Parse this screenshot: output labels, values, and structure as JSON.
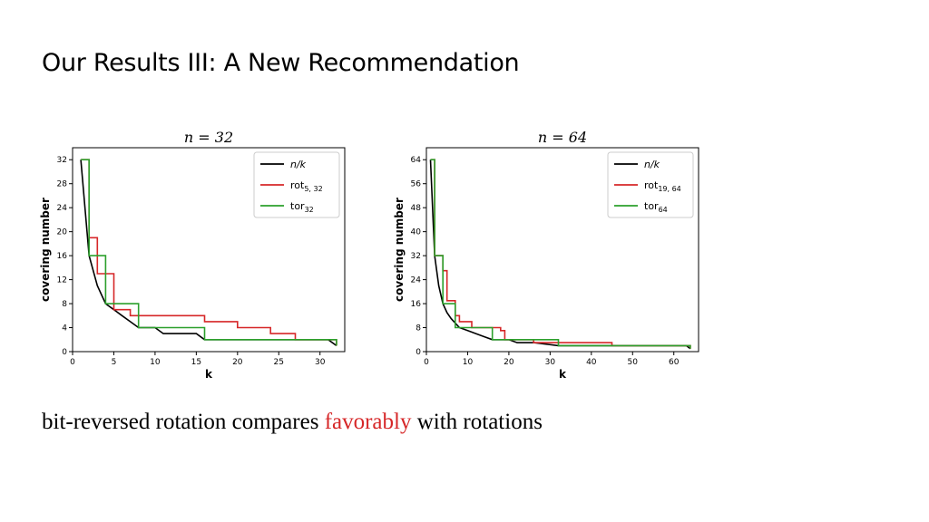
{
  "slide": {
    "title": "Our Results III: A New Recommendation",
    "caption_pre": "bit-reversed rotation compares ",
    "caption_highlight": "favorably",
    "caption_post": " with rotations"
  },
  "chart_data": [
    {
      "type": "line",
      "title": "n = 32",
      "xlabel": "k",
      "ylabel": "covering number",
      "xlim": [
        0,
        33
      ],
      "ylim": [
        0,
        34
      ],
      "xticks": [
        0,
        5,
        10,
        15,
        20,
        25,
        30
      ],
      "yticks": [
        0,
        4,
        8,
        12,
        16,
        20,
        24,
        28,
        32
      ],
      "grid": false,
      "legend_position": "top-right",
      "series": [
        {
          "name": "n/k",
          "name_main": "n/k",
          "name_sub": "",
          "color": "#000000",
          "step": false,
          "x": [
            1,
            2,
            3,
            4,
            5,
            6,
            7,
            8,
            9,
            10,
            11,
            12,
            13,
            14,
            15,
            16,
            17,
            18,
            19,
            20,
            21,
            22,
            23,
            24,
            25,
            26,
            27,
            28,
            29,
            30,
            31,
            32
          ],
          "y": [
            32,
            16,
            11,
            8,
            7,
            6,
            5,
            4,
            4,
            4,
            3,
            3,
            3,
            3,
            3,
            2,
            2,
            2,
            2,
            2,
            2,
            2,
            2,
            2,
            2,
            2,
            2,
            2,
            2,
            2,
            2,
            1
          ]
        },
        {
          "name": "rot5,32",
          "name_main": "rot",
          "name_sub": "5, 32",
          "color": "#d62728",
          "step": true,
          "x": [
            1,
            2,
            3,
            4,
            5,
            7,
            8,
            12,
            16,
            20,
            24,
            27,
            31,
            32
          ],
          "y": [
            32,
            19,
            13,
            13,
            7,
            6,
            6,
            6,
            5,
            4,
            3,
            2,
            2,
            1
          ]
        },
        {
          "name": "tor32",
          "name_main": "tor",
          "name_sub": "32",
          "color": "#2ca02c",
          "step": true,
          "x": [
            1,
            2,
            3,
            4,
            8,
            16,
            32
          ],
          "y": [
            32,
            16,
            16,
            8,
            4,
            2,
            1
          ]
        }
      ]
    },
    {
      "type": "line",
      "title": "n = 64",
      "xlabel": "k",
      "ylabel": "covering number",
      "xlim": [
        0,
        66
      ],
      "ylim": [
        0,
        68
      ],
      "xticks": [
        0,
        10,
        20,
        30,
        40,
        50,
        60
      ],
      "yticks": [
        0,
        8,
        16,
        24,
        32,
        40,
        48,
        56,
        64
      ],
      "grid": false,
      "legend_position": "top-right",
      "series": [
        {
          "name": "n/k",
          "name_main": "n/k",
          "name_sub": "",
          "color": "#000000",
          "step": false,
          "x": [
            1,
            2,
            3,
            4,
            5,
            6,
            8,
            10,
            12,
            14,
            16,
            20,
            22,
            26,
            32,
            40,
            50,
            60,
            63,
            64
          ],
          "y": [
            64,
            32,
            22,
            16,
            13,
            11,
            8,
            7,
            6,
            5,
            4,
            4,
            3,
            3,
            2,
            2,
            2,
            2,
            2,
            1
          ]
        },
        {
          "name": "rot19,64",
          "name_main": "rot",
          "name_sub": "19, 64",
          "color": "#d62728",
          "step": true,
          "x": [
            1,
            2,
            3,
            4,
            5,
            6,
            7,
            8,
            11,
            12,
            18,
            19,
            26,
            45,
            64
          ],
          "y": [
            64,
            32,
            32,
            27,
            17,
            17,
            12,
            10,
            8,
            8,
            7,
            4,
            3,
            2,
            1
          ]
        },
        {
          "name": "tor64",
          "name_main": "tor",
          "name_sub": "64",
          "color": "#2ca02c",
          "step": true,
          "x": [
            1,
            2,
            3,
            4,
            5,
            7,
            8,
            16,
            32,
            64
          ],
          "y": [
            64,
            32,
            32,
            16,
            16,
            8,
            8,
            4,
            2,
            1
          ]
        }
      ]
    }
  ]
}
